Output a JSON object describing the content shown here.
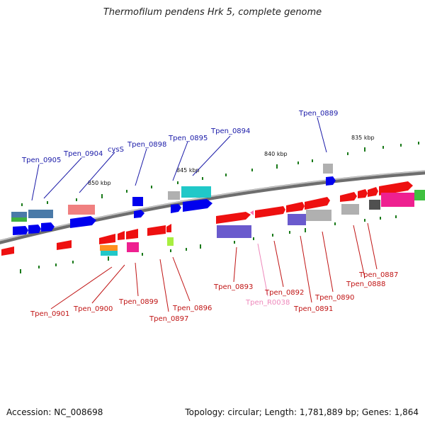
{
  "title": "Thermofilum pendens Hrk 5, complete genome",
  "footer": {
    "accession": "Accession: NC_008698",
    "summary": "Topology: circular; Length: 1,781,889 bp; Genes: 1,864"
  },
  "scale_labels": [
    "850 kbp",
    "845 kbp",
    "840 kbp",
    "835 kbp"
  ],
  "top_labels": [
    "Tpen_0905",
    "Tpen_0904",
    "cysS",
    "Tpen_0898",
    "Tpen_0895",
    "Tpen_0894",
    "Tpen_0889"
  ],
  "bottom_labels": [
    "Tpen_0901",
    "Tpen_0900",
    "Tpen_0899",
    "Tpen_0897",
    "Tpen_0896",
    "Tpen_0893",
    "Tpen_R0038",
    "Tpen_0892",
    "Tpen_0891",
    "Tpen_0890",
    "Tpen_0888",
    "Tpen_0887"
  ],
  "colors": {
    "forward_label": "#1a1aa8",
    "reverse_label": "#c01414",
    "rna_label": "#ee88bb",
    "backbone": "#808080"
  }
}
